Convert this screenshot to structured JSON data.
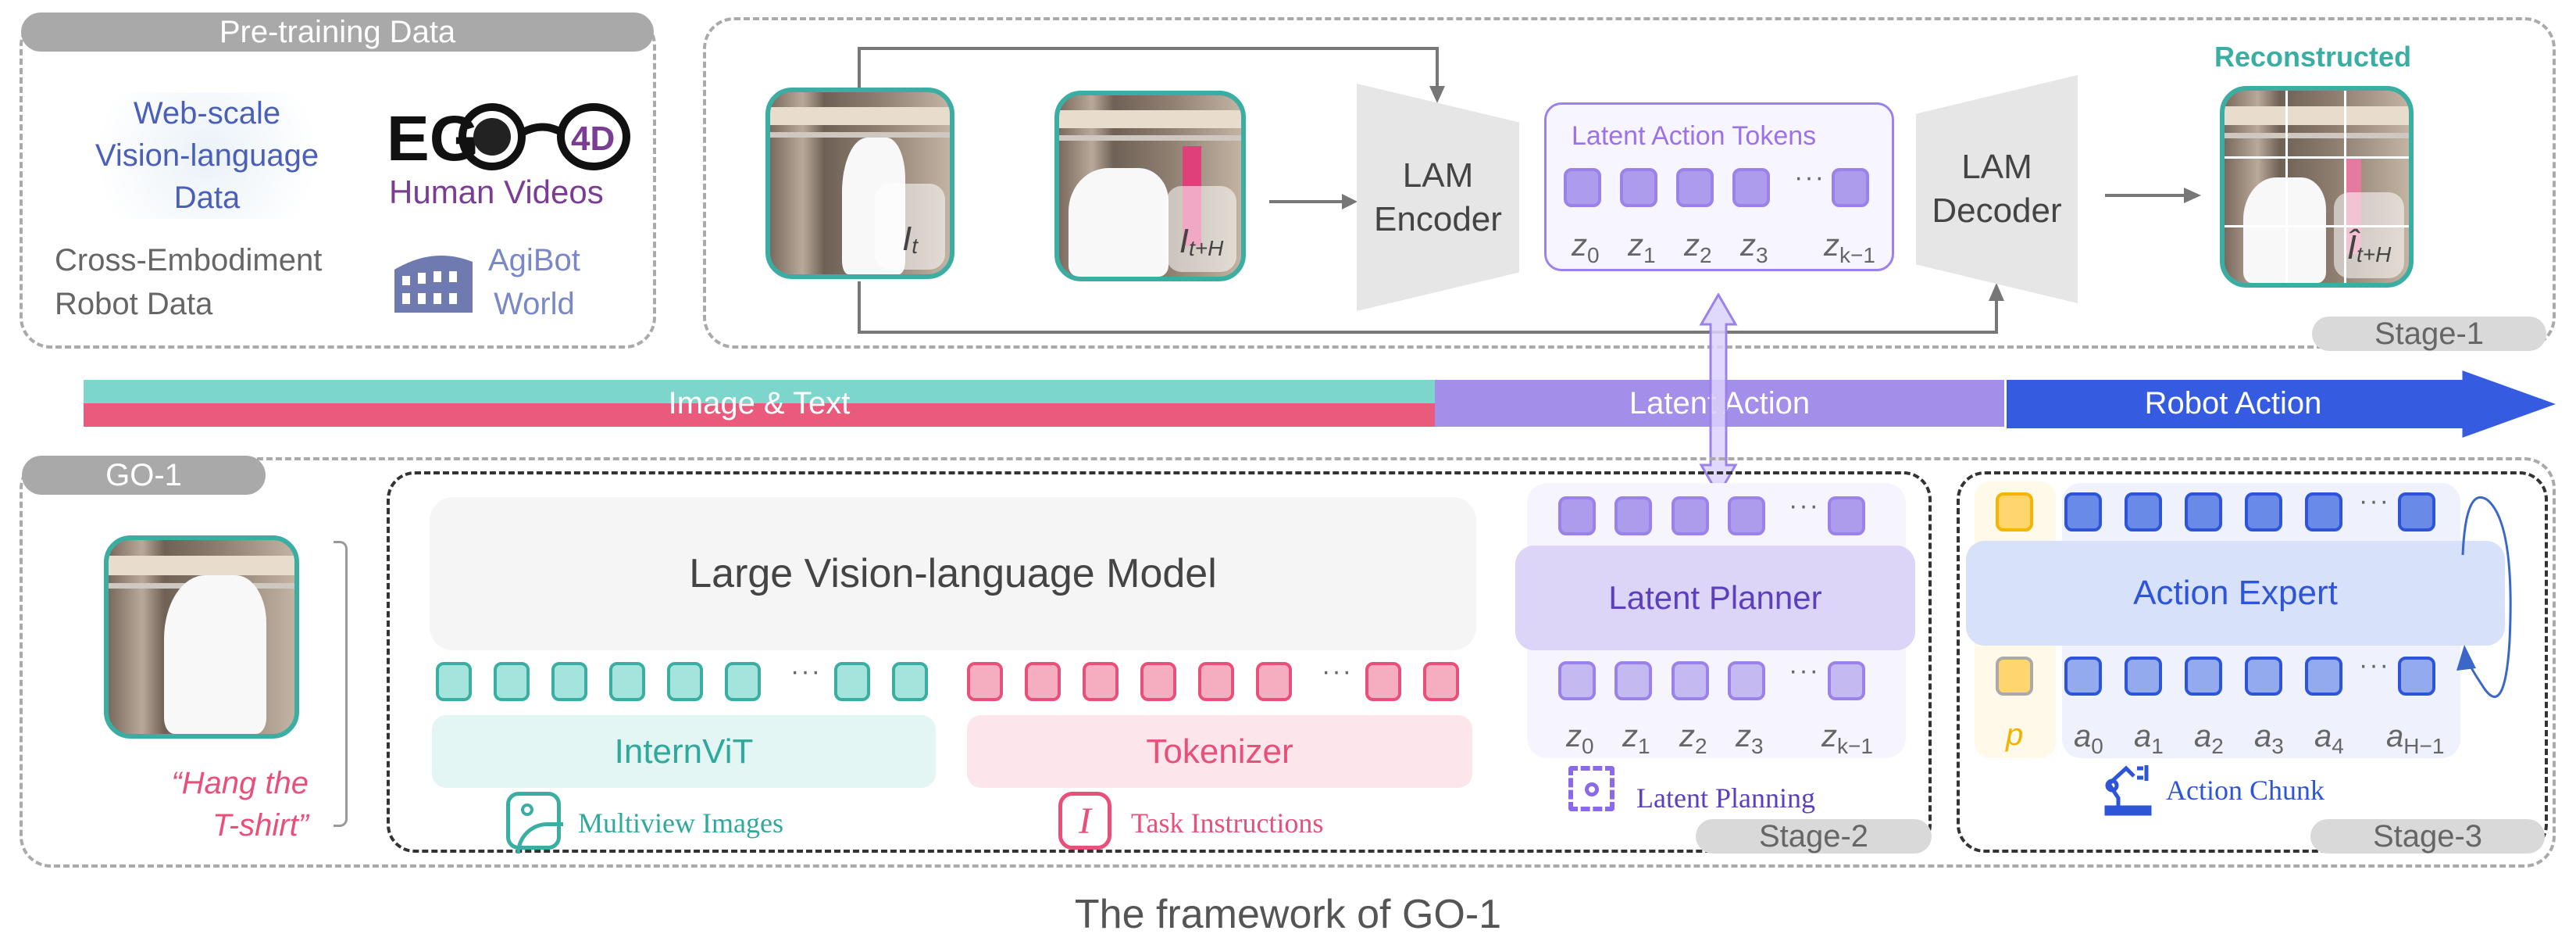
{
  "pretraining": {
    "title": "Pre-training Data",
    "web": [
      "Web-scale",
      "Vision-language",
      "Data"
    ],
    "ego_logo": "EGO4D",
    "human": "Human Videos",
    "cross": [
      "Cross-Embodiment",
      "Robot Data"
    ],
    "agibot": [
      "AgiBot",
      "World"
    ]
  },
  "stage1": {
    "frame_t": {
      "base": "I",
      "sub": "t"
    },
    "frame_th": {
      "base": "I",
      "sub": "t+H"
    },
    "encoder": [
      "LAM",
      "Encoder"
    ],
    "decoder": [
      "LAM",
      "Decoder"
    ],
    "tokens_title": "Latent Action Tokens",
    "z_labels": [
      {
        "b": "z",
        "s": "0"
      },
      {
        "b": "z",
        "s": "1"
      },
      {
        "b": "z",
        "s": "2"
      },
      {
        "b": "z",
        "s": "3"
      },
      {
        "b": "z",
        "s": "k−1"
      }
    ],
    "reconstructed": "Reconstructed",
    "recon_frame": {
      "base": "Î",
      "sub": "t+H"
    },
    "stage": "Stage-1"
  },
  "band": {
    "image_text": "Image & Text",
    "latent": "Latent Action",
    "robot": "Robot Action",
    "colors": {
      "teal": "#7dd6cc",
      "pink": "#ea5a7c",
      "purple": "#a38ee9",
      "blue": "#355ce0"
    }
  },
  "go1": {
    "title": "GO-1",
    "instruction": [
      "“Hang the",
      "T-shirt”"
    ],
    "lvlm": "Large Vision-language Model",
    "internvit": "InternViT",
    "tokenizer": "Tokenizer",
    "multiview": "Multiview Images",
    "task": "Task Instructions"
  },
  "stage2": {
    "planner": "Latent Planner",
    "z_labels": [
      {
        "b": "z",
        "s": "0"
      },
      {
        "b": "z",
        "s": "1"
      },
      {
        "b": "z",
        "s": "2"
      },
      {
        "b": "z",
        "s": "3"
      },
      {
        "b": "z",
        "s": "k−1"
      }
    ],
    "caption": "Latent Planning",
    "stage": "Stage-2"
  },
  "stage3": {
    "expert": "Action Expert",
    "p": "p",
    "a_labels": [
      {
        "b": "a",
        "s": "0"
      },
      {
        "b": "a",
        "s": "1"
      },
      {
        "b": "a",
        "s": "2"
      },
      {
        "b": "a",
        "s": "3"
      },
      {
        "b": "a",
        "s": "4"
      },
      {
        "b": "a",
        "s": "H−1"
      }
    ],
    "caption": "Action Chunk",
    "stage": "Stage-3"
  },
  "caption": "The framework of GO-1"
}
